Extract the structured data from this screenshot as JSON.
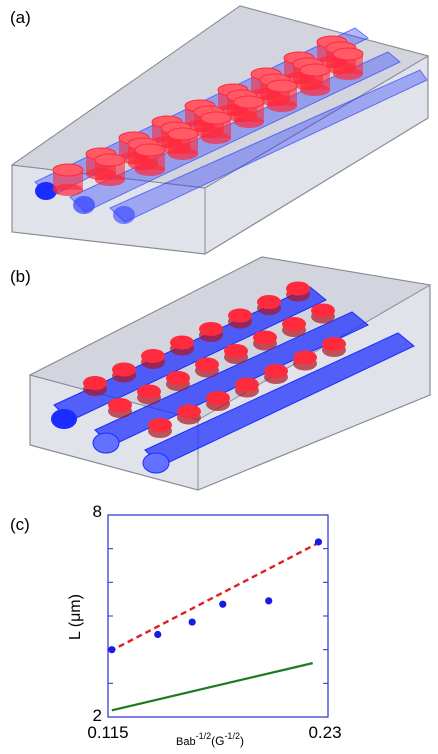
{
  "panels": {
    "a": "(a)",
    "b": "(b)",
    "c": "(c)"
  },
  "colors": {
    "box_fill": "#d8dae3",
    "box_edge": "#8c8c96",
    "tube_blue": "#1a2cff",
    "pore_red": "#ff2a3c",
    "data_point": "#1a1ae6",
    "fit_line": "#e02020",
    "theory_line": "#1f7a1f",
    "plot_frame": "#2b2bd6"
  },
  "chart_data": {
    "type": "scatter",
    "xlabel_base": "Bab",
    "xlabel_sup1": "-1/2",
    "xlabel_unit_open": "(G",
    "xlabel_sup2": "-1/2",
    "xlabel_unit_close": ")",
    "ylabel": "L (μm)",
    "xlim": [
      0.115,
      0.23
    ],
    "ylim": [
      2,
      8
    ],
    "x_tick_labels": [
      "0.115",
      "0.23"
    ],
    "y_tick_labels": [
      "2",
      "8"
    ],
    "grid": false,
    "points": [
      {
        "x": 0.117,
        "y": 4.0
      },
      {
        "x": 0.141,
        "y": 4.45
      },
      {
        "x": 0.159,
        "y": 4.82
      },
      {
        "x": 0.175,
        "y": 5.35
      },
      {
        "x": 0.199,
        "y": 5.45
      },
      {
        "x": 0.225,
        "y": 7.2
      }
    ],
    "fit_line": {
      "style": "dashed",
      "x": [
        0.116,
        0.226
      ],
      "y": [
        3.95,
        7.2
      ]
    },
    "theory_line": {
      "style": "solid",
      "x": [
        0.117,
        0.222
      ],
      "y": [
        2.2,
        3.6
      ]
    }
  }
}
